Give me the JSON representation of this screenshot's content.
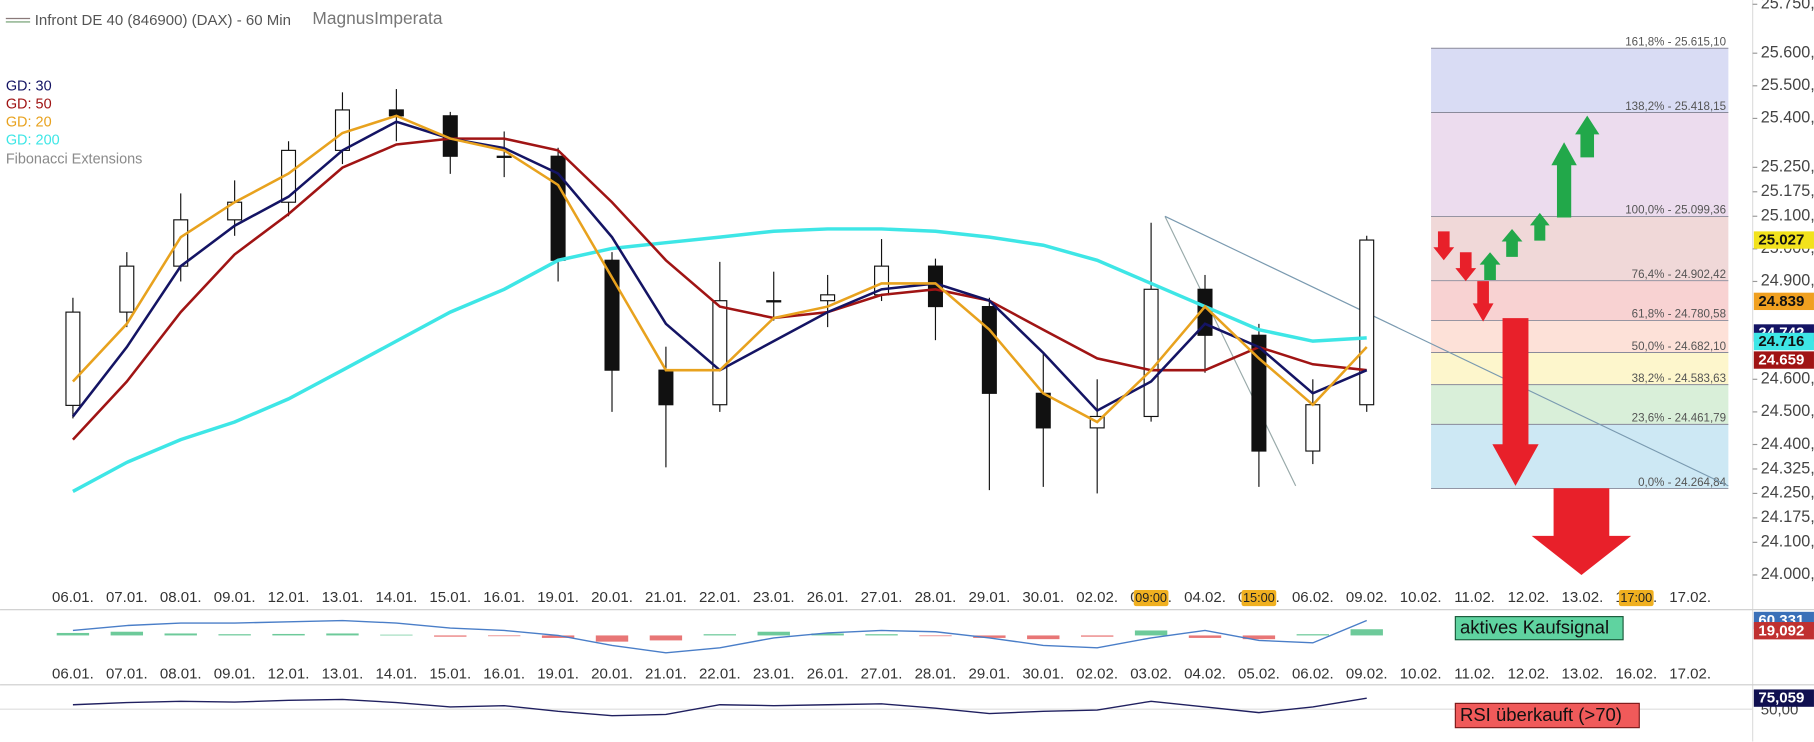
{
  "chart_data": [
    {
      "type": "candlestick",
      "title": "Infront DE 40 (846900) (DAX) - 60 Min",
      "subtitle": "MagnusImperata",
      "categories": [
        "06.01.",
        "07.01.",
        "08.01.",
        "09.01.",
        "12.01.",
        "13.01.",
        "14.01.",
        "15.01.",
        "16.01.",
        "19.01.",
        "20.01.",
        "21.01.",
        "22.01.",
        "23.01.",
        "26.01.",
        "27.01.",
        "28.01.",
        "29.01.",
        "30.01.",
        "02.02.",
        "03.02.",
        "04.02.",
        "05.02.",
        "06.02.",
        "09.02.",
        "10.02.",
        "11.02.",
        "12.02.",
        "13.02.",
        "16.02.",
        "17.02."
      ],
      "open": [
        24520,
        24806,
        24947,
        25089,
        25143,
        25302,
        25426,
        25408,
        25284,
        25284,
        24965,
        24628,
        24522,
        24841,
        24841,
        24859,
        24947,
        24823,
        24557,
        24451,
        24486,
        24876,
        24735,
        24380,
        24522,
        null,
        null,
        null,
        null,
        null,
        null
      ],
      "high": [
        24850,
        24990,
        25170,
        25210,
        25330,
        25480,
        25490,
        25420,
        25360,
        25310,
        24990,
        24700,
        24960,
        24930,
        24920,
        25030,
        24970,
        24850,
        24680,
        24600,
        25080,
        24920,
        24770,
        24600,
        25040,
        null,
        null,
        null,
        null,
        null,
        null
      ],
      "low": [
        24480,
        24760,
        24900,
        25040,
        25100,
        25260,
        25330,
        25230,
        25220,
        24900,
        24500,
        24330,
        24500,
        24780,
        24760,
        24840,
        24720,
        24260,
        24270,
        24250,
        24470,
        24620,
        24270,
        24340,
        24500,
        null,
        null,
        null,
        null,
        null,
        null
      ],
      "close": [
        24806,
        24947,
        25089,
        25143,
        25302,
        25426,
        25408,
        25284,
        25284,
        24965,
        24628,
        24522,
        24841,
        24841,
        24859,
        24947,
        24823,
        24557,
        24451,
        24486,
        24876,
        24735,
        24380,
        24522,
        25027,
        null,
        null,
        null,
        null,
        null,
        null
      ],
      "series": [
        {
          "name": "GD: 30",
          "color": "#141464",
          "values": [
            24486,
            24699,
            24947,
            25071,
            25160,
            25302,
            25390,
            25338,
            25309,
            25231,
            25036,
            24770,
            24628,
            24717,
            24806,
            24876,
            24894,
            24841,
            24681,
            24504,
            24593,
            24770,
            24699,
            24557,
            24628,
            null,
            null,
            null,
            null,
            null,
            null
          ]
        },
        {
          "name": "GD: 50",
          "color": "#a01414",
          "values": [
            24415,
            24593,
            24806,
            24983,
            25107,
            25249,
            25320,
            25338,
            25338,
            25302,
            25143,
            24965,
            24823,
            24788,
            24806,
            24859,
            24876,
            24841,
            24752,
            24664,
            24628,
            24628,
            24699,
            24646,
            24628,
            null,
            null,
            null,
            null,
            null,
            null
          ]
        },
        {
          "name": "GD: 20",
          "color": "#e8a21e",
          "values": [
            24593,
            24770,
            25036,
            25143,
            25231,
            25355,
            25408,
            25338,
            25302,
            25196,
            24912,
            24628,
            24628,
            24788,
            24823,
            24894,
            24894,
            24752,
            24557,
            24469,
            24628,
            24823,
            24664,
            24522,
            24699,
            null,
            null,
            null,
            null,
            null,
            null
          ]
        },
        {
          "name": "GD: 200",
          "color": "#3ee6e6",
          "values": [
            24256,
            24345,
            24415,
            24469,
            24540,
            24628,
            24717,
            24806,
            24876,
            24965,
            25001,
            25019,
            25036,
            25054,
            25061,
            25061,
            25054,
            25036,
            25011,
            24965,
            24894,
            24823,
            24752,
            24717,
            24727,
            null,
            null,
            null,
            null,
            null,
            null
          ]
        }
      ],
      "ylim": [
        24000,
        25750
      ],
      "yticks": [
        {
          "value": 25750,
          "label": "25.750,"
        },
        {
          "value": 25600,
          "label": "25.600,"
        },
        {
          "value": 25500,
          "label": "25.500,"
        },
        {
          "value": 25400,
          "label": "25.400,"
        },
        {
          "value": 25250,
          "label": "25.250,"
        },
        {
          "value": 25175,
          "label": "25.175,"
        },
        {
          "value": 25100,
          "label": "25.100,"
        },
        {
          "value": 25000,
          "label": "25.000,"
        },
        {
          "value": 24900,
          "label": "24.900,"
        },
        {
          "value": 24600,
          "label": "24.600,"
        },
        {
          "value": 24500,
          "label": "24.500,"
        },
        {
          "value": 24400,
          "label": "24.400,"
        },
        {
          "value": 24325,
          "label": "24.325,"
        },
        {
          "value": 24250,
          "label": "24.250,"
        },
        {
          "value": 24175,
          "label": "24.175,"
        },
        {
          "value": 24100,
          "label": "24.100,"
        },
        {
          "value": 24000,
          "label": "24.000,"
        }
      ],
      "fibonacci": {
        "name": "Fibonacci Extensions",
        "levels": [
          {
            "value": 25615.1,
            "label": "161,8% - 25.615,10"
          },
          {
            "value": 25418.15,
            "label": "138,2% - 25.418,15"
          },
          {
            "value": 25099.36,
            "label": "100,0% - 25.099,36"
          },
          {
            "value": 24902.42,
            "label": "76,4% - 24.902,42"
          },
          {
            "value": 24780.58,
            "label": "61,8% - 24.780,58"
          },
          {
            "value": 24682.1,
            "label": "50,0% - 24.682,10"
          },
          {
            "value": 24583.63,
            "label": "38,2% - 24.583,63"
          },
          {
            "value": 24461.79,
            "label": "23,6% - 24.461,79"
          },
          {
            "value": 24264.84,
            "label": "0,0% - 24.264,84"
          }
        ],
        "colors": [
          "#d9dcf4",
          "#ecdcee",
          "#f0d8d8",
          "#f8d2d2",
          "#fde1d8",
          "#fdf6cc",
          "#d9efd9",
          "#cde8f4"
        ]
      },
      "last_values": [
        {
          "value": 25027,
          "label": "25.027",
          "color": "#f2e21c"
        },
        {
          "value": 24839,
          "label": "24.839",
          "color": "#f0a020"
        },
        {
          "value": 24742,
          "label": "24.742",
          "color": "#141464"
        },
        {
          "value": 24716,
          "label": "24.716",
          "color": "#3ee6e6"
        },
        {
          "value": 24659,
          "label": "24.659",
          "color": "#a01414"
        }
      ],
      "x_annotations": [
        {
          "category": "03.02.",
          "label": "09:00"
        },
        {
          "category": "05.02.",
          "label": "15:00"
        },
        {
          "category": "16.02.",
          "label": "17:00"
        }
      ]
    },
    {
      "type": "bar",
      "categories": [
        "06.01.",
        "07.01.",
        "08.01.",
        "09.01.",
        "12.01.",
        "13.01.",
        "14.01.",
        "15.01.",
        "16.01.",
        "19.01.",
        "20.01.",
        "21.01.",
        "22.01.",
        "23.01.",
        "26.01.",
        "27.01.",
        "28.01.",
        "29.01.",
        "30.01.",
        "02.02.",
        "03.02.",
        "04.02.",
        "05.02.",
        "06.02.",
        "09.02.",
        "10.02.",
        "11.02.",
        "12.02.",
        "13.02.",
        "16.02.",
        "17.02."
      ],
      "values": [
        10,
        15,
        8,
        5,
        6,
        8,
        3,
        -5,
        -3,
        -10,
        -25,
        -20,
        5,
        15,
        8,
        5,
        -3,
        -10,
        -15,
        -5,
        20,
        -10,
        -15,
        5,
        25,
        null,
        null,
        null,
        null,
        null,
        null
      ],
      "colors": [
        "#3cb878",
        "#e04848"
      ],
      "series": [
        {
          "color": "#4a7ec8",
          "values": [
            20,
            40,
            50,
            50,
            55,
            60,
            50,
            30,
            20,
            0,
            -40,
            -70,
            -50,
            -10,
            10,
            20,
            15,
            -10,
            -40,
            -50,
            -10,
            20,
            -20,
            -30,
            60,
            null,
            null,
            null,
            null,
            null,
            null
          ]
        }
      ],
      "ylim": [
        -120,
        90
      ],
      "annotation": "aktives Kaufsignal",
      "last_values": [
        {
          "value": 60.331,
          "label": "60,331",
          "color": "#3a70b8"
        },
        {
          "value": 19.092,
          "label": "19,092",
          "color": "#c03030"
        }
      ]
    },
    {
      "type": "line",
      "series": [
        {
          "color": "#202060",
          "values": [
            60,
            65,
            68,
            66,
            70,
            72,
            65,
            55,
            58,
            45,
            35,
            38,
            60,
            58,
            60,
            62,
            52,
            40,
            45,
            48,
            68,
            55,
            42,
            55,
            75,
            null,
            null,
            null,
            null,
            null,
            null
          ]
        }
      ],
      "ylim": [
        0,
        100
      ],
      "yticks": [
        {
          "value": 50,
          "label": "50,00"
        }
      ],
      "annotation": "RSI überkauft (>70)",
      "last_values": [
        {
          "value": 75.059,
          "label": "75,059",
          "color": "#101050"
        }
      ]
    }
  ]
}
